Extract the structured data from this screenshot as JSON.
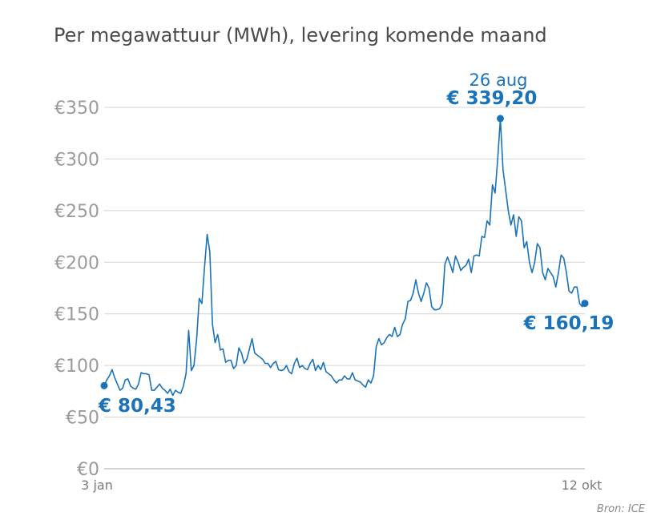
{
  "chart_data": {
    "type": "line",
    "title": "Per megawattuur (MWh), levering komende maand",
    "source": "Bron: ICE",
    "x_start_label": "3 jan",
    "x_end_label": "12 okt",
    "y_tick_labels": [
      "€0",
      "€50",
      "€100",
      "€150",
      "€200",
      "€250",
      "€300",
      "€350"
    ],
    "y_ticks": [
      0,
      50,
      100,
      150,
      200,
      250,
      300,
      350
    ],
    "ylim": [
      0,
      350
    ],
    "grid": true,
    "color": "#1a73b8",
    "annotations": {
      "start": {
        "value_label": "€ 80,43"
      },
      "peak": {
        "date_label": "26 aug",
        "value_label": "€ 339,20"
      },
      "end": {
        "value_label": "€ 160,19"
      }
    },
    "series": [
      {
        "values": [
          80.43,
          86,
          90,
          96,
          88,
          82,
          76,
          78,
          86,
          87,
          80,
          78,
          77,
          82,
          93,
          92,
          92,
          91,
          76,
          76,
          79,
          82,
          78,
          76,
          73,
          77,
          71,
          76,
          74,
          73,
          80,
          92,
          134,
          95,
          100,
          125,
          165,
          160,
          195,
          227,
          210,
          140,
          122,
          130,
          115,
          116,
          103,
          105,
          105,
          97,
          100,
          117,
          112,
          102,
          106,
          116,
          126,
          112,
          110,
          108,
          106,
          102,
          102,
          98,
          102,
          104,
          96,
          95,
          96,
          100,
          94,
          92,
          102,
          107,
          98,
          100,
          97,
          96,
          102,
          106,
          95,
          100,
          96,
          103,
          94,
          92,
          90,
          86,
          83,
          86,
          86,
          90,
          87,
          87,
          93,
          86,
          85,
          84,
          81,
          79,
          86,
          83,
          90,
          118,
          126,
          120,
          122,
          127,
          130,
          128,
          137,
          128,
          130,
          140,
          145,
          162,
          163,
          170,
          183,
          170,
          162,
          170,
          180,
          175,
          157,
          154,
          154,
          155,
          160,
          198,
          205,
          198,
          190,
          206,
          200,
          192,
          195,
          197,
          203,
          190,
          206,
          207,
          206,
          225,
          224,
          240,
          236,
          275,
          267,
          300,
          339.2,
          290,
          270,
          250,
          236,
          246,
          225,
          244,
          240,
          214,
          220,
          200,
          190,
          200,
          218,
          214,
          190,
          183,
          194,
          190,
          186,
          176,
          190,
          207,
          204,
          190,
          172,
          170,
          176,
          176,
          160,
          157,
          160.19
        ]
      }
    ]
  }
}
